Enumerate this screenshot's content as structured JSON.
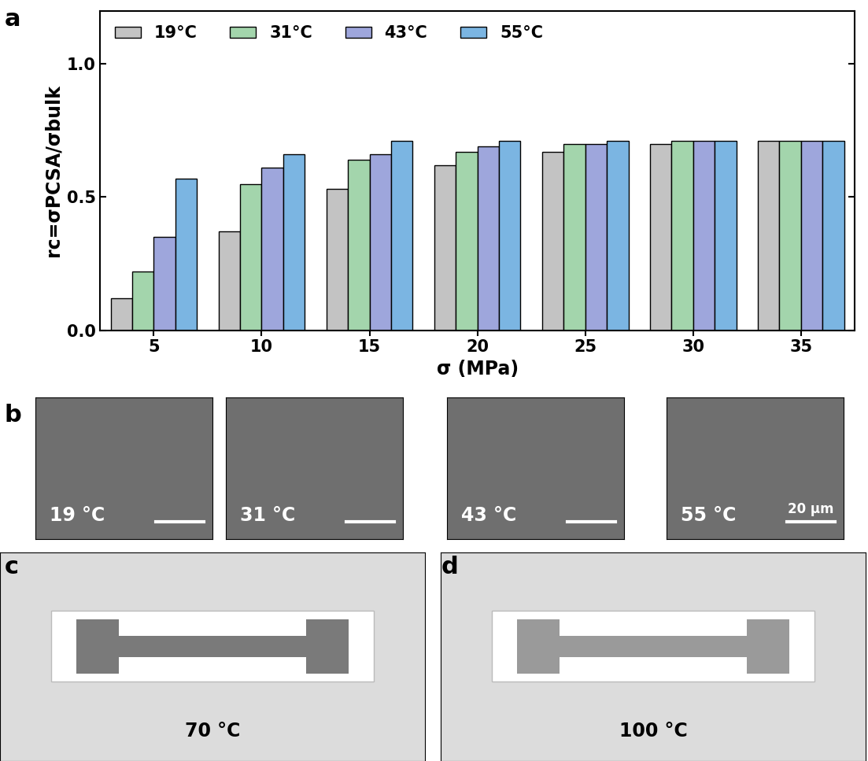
{
  "chart_data": {
    "type": "bar",
    "x_label": "σ (MPa)",
    "y_label": "rc=σPCSA/σbulk",
    "categories": [
      "5",
      "10",
      "15",
      "20",
      "25",
      "30",
      "35"
    ],
    "series": [
      {
        "name": "19°C",
        "color": "#c3c3c3",
        "values": [
          0.12,
          0.37,
          0.53,
          0.62,
          0.67,
          0.7,
          0.71
        ]
      },
      {
        "name": "31°C",
        "color": "#a3d5ac",
        "values": [
          0.22,
          0.55,
          0.64,
          0.67,
          0.7,
          0.71,
          0.71
        ]
      },
      {
        "name": "43°C",
        "color": "#9ea6dc",
        "values": [
          0.35,
          0.61,
          0.66,
          0.69,
          0.7,
          0.71,
          0.71
        ]
      },
      {
        "name": "55°C",
        "color": "#7bb5e2",
        "values": [
          0.57,
          0.66,
          0.71,
          0.71,
          0.71,
          0.71,
          0.71
        ]
      }
    ],
    "ylim": [
      0,
      1.2
    ],
    "yticks": [
      {
        "value": 0,
        "label": "0.0"
      },
      {
        "value": 0.5,
        "label": "0.5"
      },
      {
        "value": 1.0,
        "label": "1.0"
      }
    ],
    "legend": "upper left"
  },
  "panel_labels": [
    "a",
    "b",
    "c",
    "d"
  ],
  "sem_images": {
    "labels": [
      "19 °C",
      "31 °C",
      "43 °C",
      "55 °C"
    ],
    "scale_bar": "20 μm"
  },
  "photos": {
    "labels": [
      "70 °C",
      "100 °C"
    ]
  }
}
